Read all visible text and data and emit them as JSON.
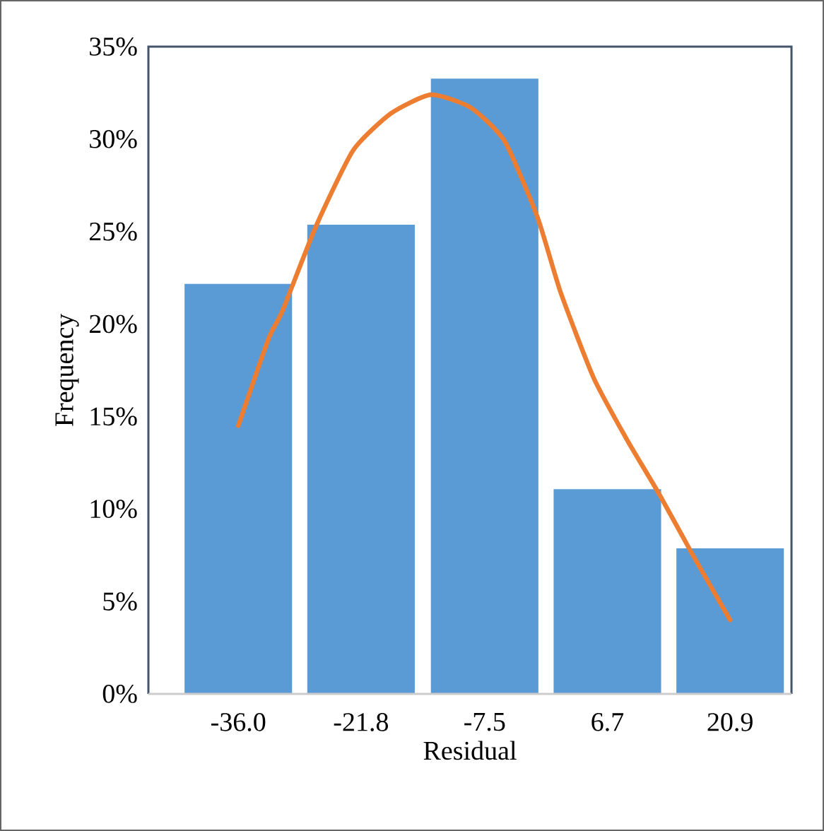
{
  "chart_data": {
    "type": "bar",
    "xlabel": "Residual",
    "ylabel": "Frequency",
    "x": [
      -36.0,
      -21.8,
      -7.5,
      6.7,
      20.9
    ],
    "xlim": [
      -46.4,
      28.0
    ],
    "xticks": [
      {
        "value": -36.0,
        "label": "-36.0"
      },
      {
        "value": -21.8,
        "label": "-21.8"
      },
      {
        "value": -7.5,
        "label": "-7.5"
      },
      {
        "value": 6.7,
        "label": "6.7"
      },
      {
        "value": 20.9,
        "label": "20.9"
      }
    ],
    "ylim": [
      0,
      35
    ],
    "yticks": [
      {
        "value": 0,
        "label": "0%"
      },
      {
        "value": 5,
        "label": "5%"
      },
      {
        "value": 10,
        "label": "10%"
      },
      {
        "value": 15,
        "label": "15%"
      },
      {
        "value": 20,
        "label": "20%"
      },
      {
        "value": 25,
        "label": "25%"
      },
      {
        "value": 30,
        "label": "30%"
      },
      {
        "value": 35,
        "label": "35%"
      }
    ],
    "series": [
      {
        "color": "#5b9bd5",
        "values": [
          22.2,
          25.4,
          33.3,
          11.1,
          7.9
        ]
      },
      {
        "type": "line",
        "color": "#ed7d31",
        "x": [
          -36.0,
          -32.5,
          -30.9,
          -27.0,
          -22.7,
          -18.3,
          -13.7,
          -9.1,
          -5.2,
          -1.4,
          1.3,
          5.1,
          8.9,
          12.7,
          16.6,
          20.9
        ],
        "values": [
          14.5,
          19.2,
          20.7,
          25.3,
          29.4,
          31.4,
          32.4,
          31.7,
          29.9,
          25.8,
          21.7,
          17.1,
          13.8,
          10.8,
          7.5,
          4.0
        ]
      }
    ]
  }
}
